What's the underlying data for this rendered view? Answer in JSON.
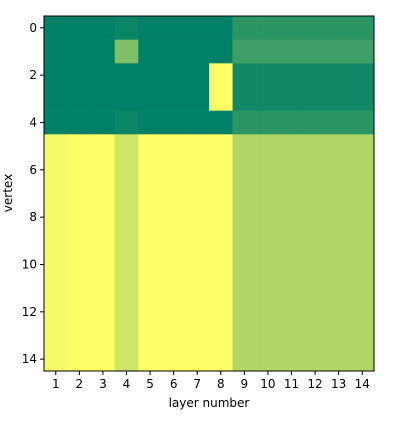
{
  "chart_data": {
    "type": "heatmap",
    "colormap": "summer",
    "clim": [
      0,
      1
    ],
    "xlabel": "layer number",
    "ylabel": "vertex",
    "xlim": [
      0.5,
      14.5
    ],
    "ylim": [
      14.5,
      -0.5
    ],
    "xticks": [
      1,
      2,
      3,
      4,
      5,
      6,
      7,
      8,
      9,
      10,
      11,
      12,
      13,
      14
    ],
    "yticks": [
      0,
      2,
      4,
      6,
      8,
      10,
      12,
      14
    ],
    "values": [
      [
        0,
        0,
        0,
        0.04,
        0,
        0,
        0,
        0,
        0.17,
        0.17,
        0.17,
        0.17,
        0.17,
        0.17
      ],
      [
        0,
        0,
        0,
        0.5,
        0,
        0,
        0,
        0,
        0.25,
        0.25,
        0.25,
        0.25,
        0.25,
        0.25
      ],
      [
        0,
        0,
        0,
        0,
        0,
        0,
        0,
        1,
        0.07,
        0.07,
        0.07,
        0.07,
        0.07,
        0.07
      ],
      [
        0,
        0,
        0,
        0,
        0,
        0,
        0,
        1,
        0.07,
        0.07,
        0.07,
        0.07,
        0.07,
        0.07
      ],
      [
        0,
        0,
        0,
        0.04,
        0,
        0,
        0,
        0,
        0.17,
        0.17,
        0.17,
        0.17,
        0.17,
        0.17
      ],
      [
        0.96,
        1,
        1,
        0.8,
        1,
        1,
        1,
        1,
        0.69,
        0.69,
        0.69,
        0.69,
        0.69,
        0.69
      ],
      [
        0.96,
        1,
        1,
        0.8,
        1,
        1,
        1,
        1,
        0.69,
        0.69,
        0.69,
        0.69,
        0.69,
        0.69
      ],
      [
        0.96,
        1,
        1,
        0.8,
        1,
        1,
        1,
        1,
        0.69,
        0.69,
        0.69,
        0.69,
        0.69,
        0.69
      ],
      [
        0.96,
        1,
        1,
        0.8,
        1,
        1,
        1,
        1,
        0.69,
        0.69,
        0.69,
        0.69,
        0.69,
        0.69
      ],
      [
        0.96,
        1,
        1,
        0.8,
        1,
        1,
        1,
        1,
        0.69,
        0.69,
        0.69,
        0.69,
        0.69,
        0.69
      ],
      [
        0.96,
        1,
        1,
        0.8,
        1,
        1,
        1,
        1,
        0.69,
        0.69,
        0.69,
        0.69,
        0.69,
        0.69
      ],
      [
        0.96,
        1,
        1,
        0.8,
        1,
        1,
        1,
        1,
        0.69,
        0.69,
        0.69,
        0.69,
        0.69,
        0.69
      ],
      [
        0.96,
        1,
        1,
        0.8,
        1,
        1,
        1,
        1,
        0.69,
        0.69,
        0.69,
        0.69,
        0.69,
        0.69
      ],
      [
        0.96,
        1,
        1,
        0.8,
        1,
        1,
        1,
        1,
        0.69,
        0.69,
        0.69,
        0.69,
        0.69,
        0.69
      ],
      [
        0.96,
        1,
        1,
        0.8,
        1,
        1,
        1,
        1,
        0.69,
        0.69,
        0.69,
        0.69,
        0.69,
        0.69
      ]
    ]
  }
}
